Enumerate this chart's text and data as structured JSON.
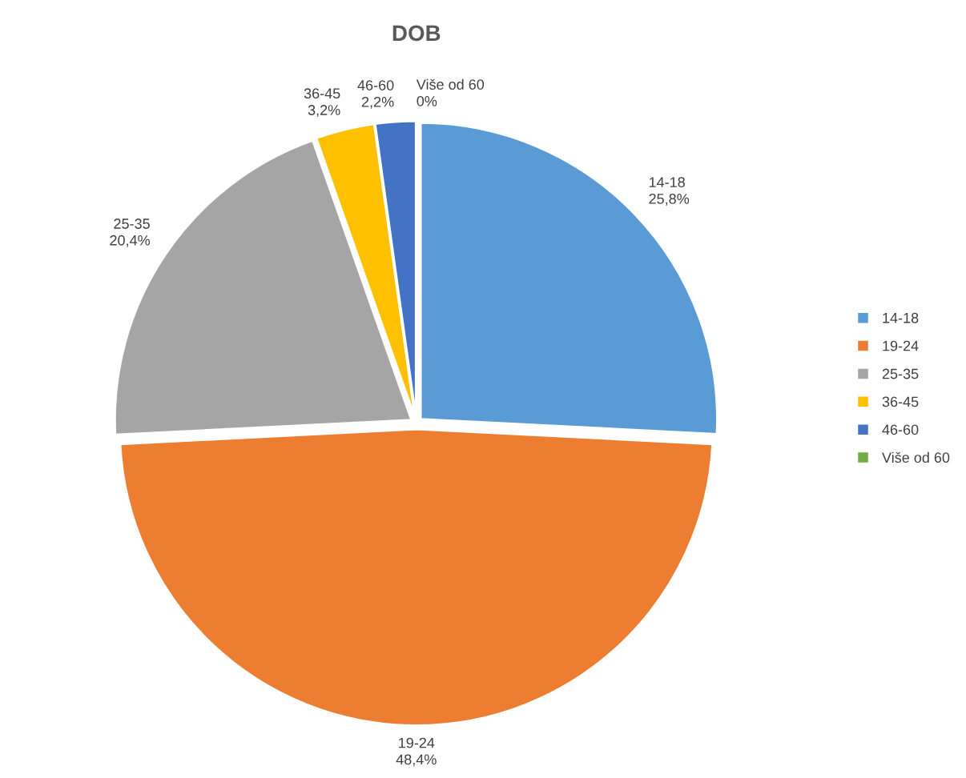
{
  "chart_data": {
    "type": "pie",
    "title": "DOB",
    "categories": [
      "14-18",
      "19-24",
      "25-35",
      "36-45",
      "46-60",
      "Više od 60"
    ],
    "values": [
      25.8,
      48.4,
      20.4,
      3.2,
      2.2,
      0
    ],
    "value_labels": [
      "25,8%",
      "48,4%",
      "20,4%",
      "3,2%",
      "2,2%",
      "0%"
    ],
    "colors": [
      "#5b9bd5",
      "#ed7d31",
      "#a5a5a5",
      "#ffc000",
      "#4472c4",
      "#70ad47"
    ],
    "legend": "right"
  }
}
